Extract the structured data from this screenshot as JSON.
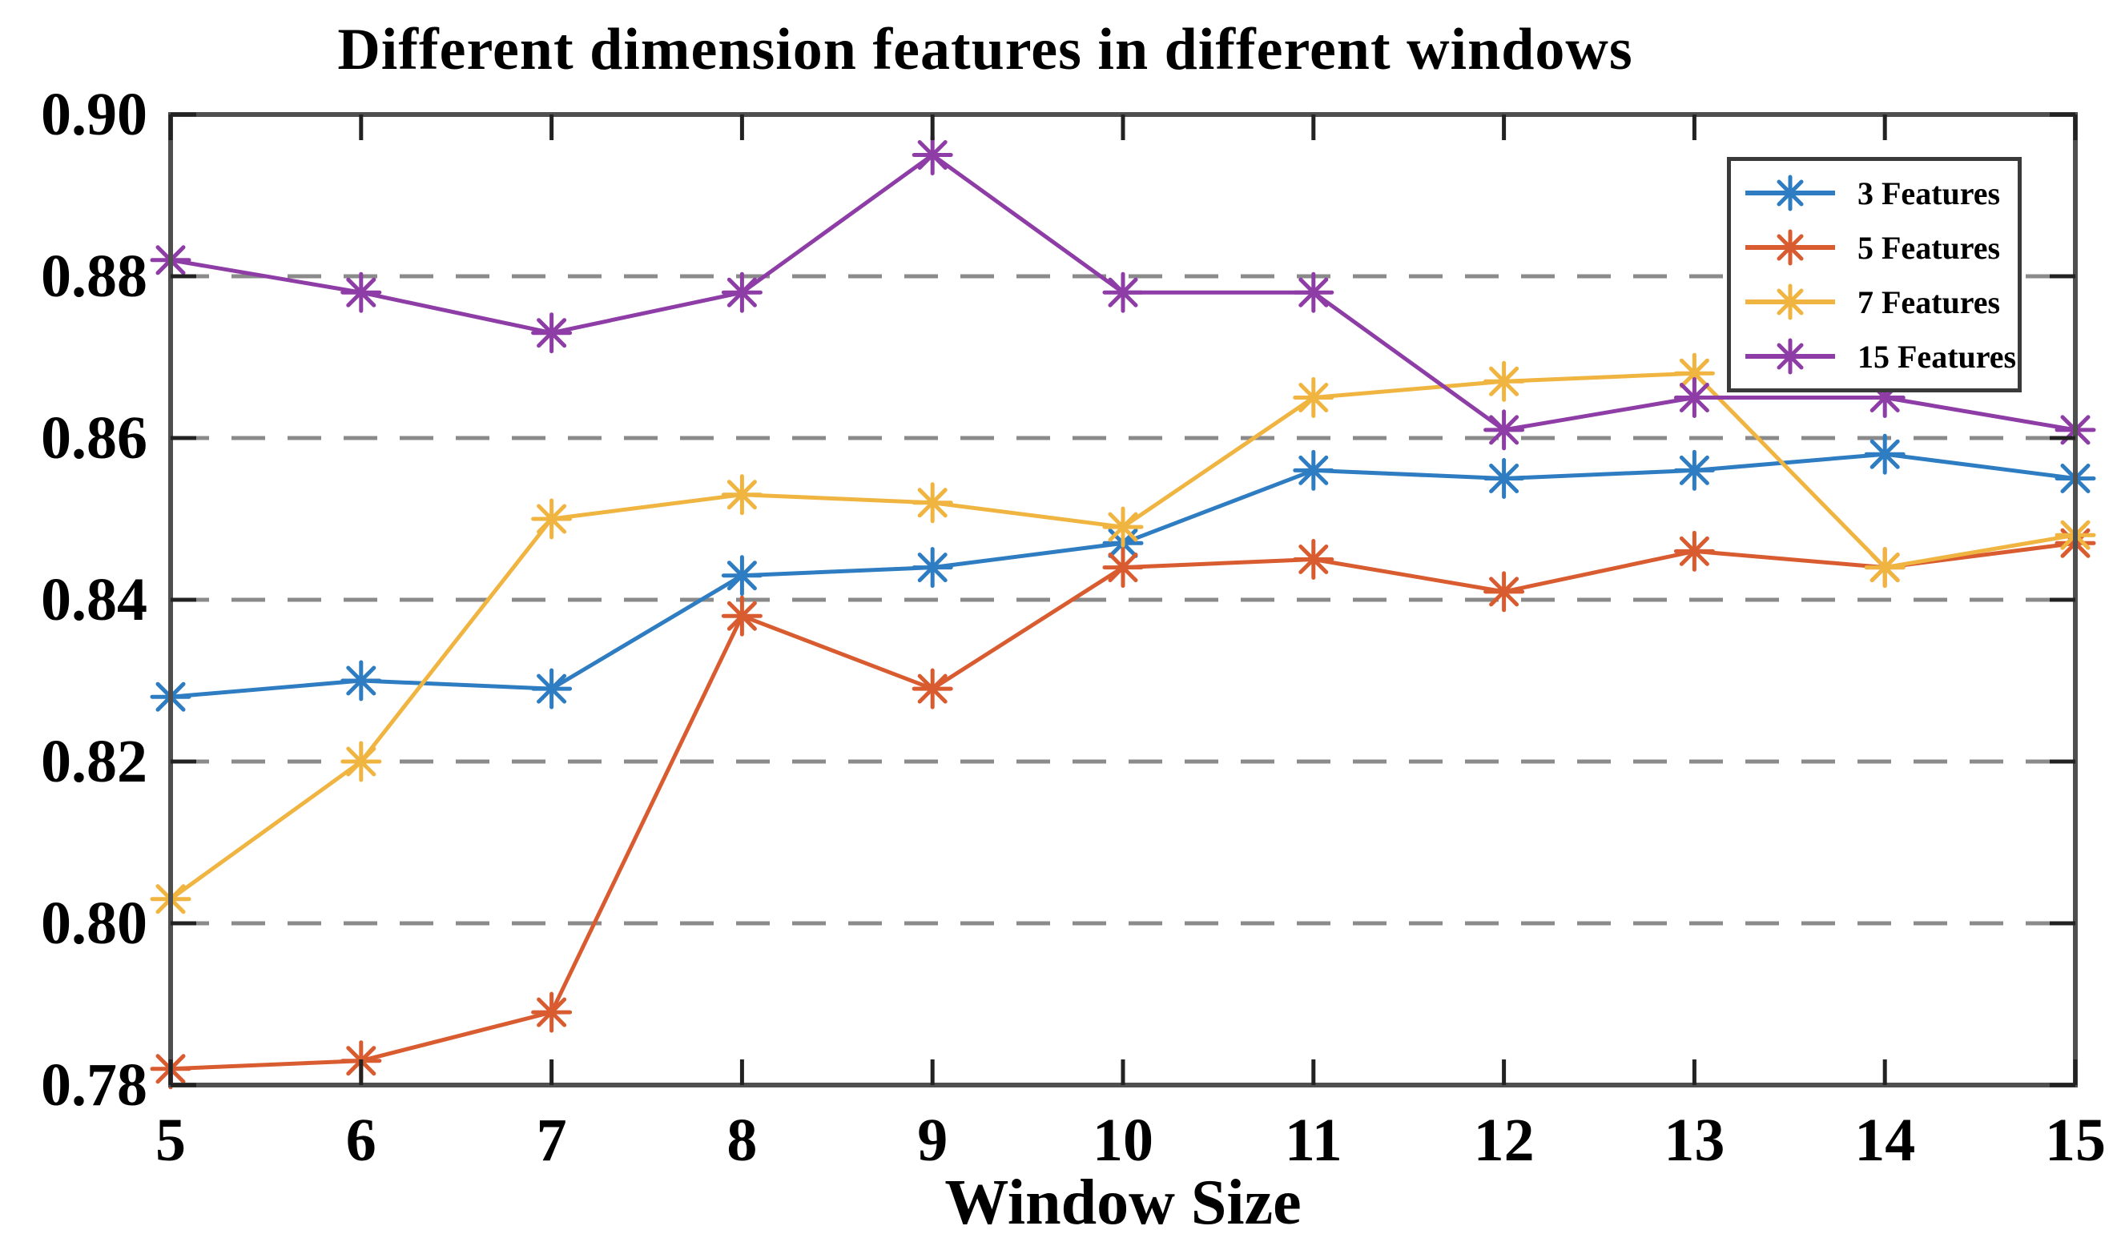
{
  "title": "Different dimension features in different windows",
  "chart_data": {
    "type": "line",
    "title": "Different dimension features in different windows",
    "xlabel": "Window Size",
    "ylabel": "",
    "x": [
      5,
      6,
      7,
      8,
      9,
      10,
      11,
      12,
      13,
      14,
      15
    ],
    "xtick_labels": [
      "5",
      "6",
      "7",
      "8",
      "9",
      "10",
      "11",
      "12",
      "13",
      "14",
      "15"
    ],
    "xlim": [
      5,
      15
    ],
    "ylim": [
      0.78,
      0.9
    ],
    "yticks": [
      0.9,
      0.88,
      0.86,
      0.84,
      0.82,
      0.8,
      0.78
    ],
    "ytick_labels": [
      "0.90",
      "0.88",
      "0.86",
      "0.84",
      "0.82",
      "0.80",
      "0.78"
    ],
    "grid": "horizontal dashed gridlines at 0.80, 0.82, 0.84, 0.86, 0.88",
    "legend_position": "top-right inside plot",
    "marker": "asterisk",
    "colors": {
      "grid": "#8a8a8a",
      "axis": "#4f4f4f",
      "tick": "#222222"
    },
    "series": [
      {
        "name": "3 Features",
        "color": "#2e7cc1",
        "values": [
          0.828,
          0.83,
          0.829,
          0.843,
          0.844,
          0.847,
          0.856,
          0.855,
          0.856,
          0.858,
          0.855
        ]
      },
      {
        "name": "5 Features",
        "color": "#d95b30",
        "values": [
          0.782,
          0.783,
          0.789,
          0.838,
          0.829,
          0.844,
          0.845,
          0.841,
          0.846,
          0.844,
          0.847
        ]
      },
      {
        "name": "7 Features",
        "color": "#f0b440",
        "values": [
          0.803,
          0.82,
          0.85,
          0.853,
          0.852,
          0.849,
          0.865,
          0.867,
          0.868,
          0.844,
          0.848
        ]
      },
      {
        "name": "15 Features",
        "color": "#8e3da6",
        "values": [
          0.882,
          0.878,
          0.873,
          0.878,
          0.895,
          0.878,
          0.878,
          0.861,
          0.865,
          0.865,
          0.861
        ]
      }
    ]
  }
}
